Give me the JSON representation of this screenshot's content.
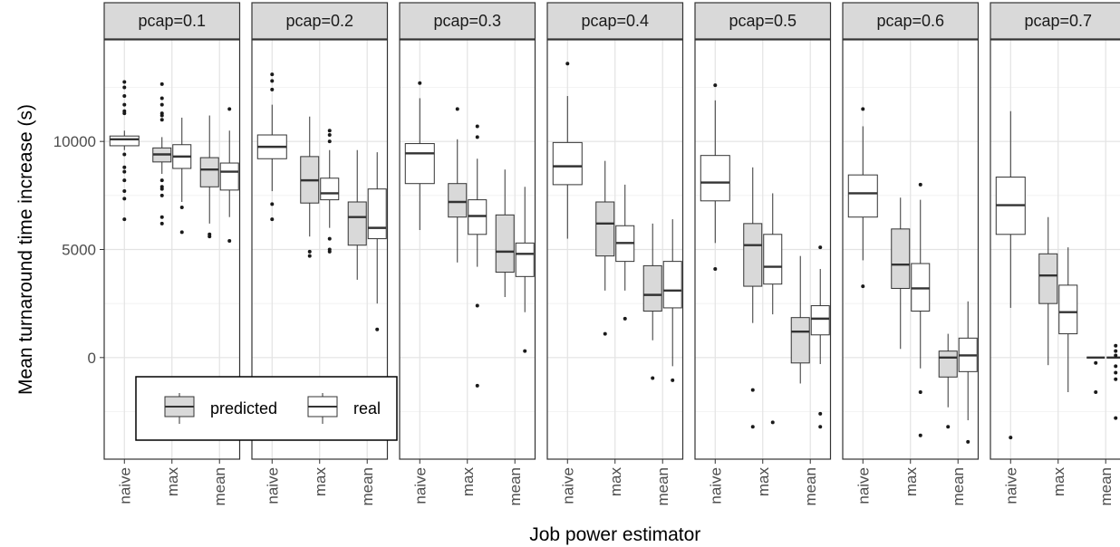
{
  "chart_data": {
    "type": "boxplot",
    "xlabel": "Job power estimator",
    "ylabel": "Mean turnaround time increase (s)",
    "ylim": [
      -4700,
      14700
    ],
    "yticks": [
      0,
      5000,
      10000
    ],
    "categories": [
      "naive",
      "max",
      "mean"
    ],
    "legend": {
      "position": "bottom-left",
      "entries": [
        {
          "label": "predicted",
          "fill": "#d9d9d9"
        },
        {
          "label": "real",
          "fill": "#ffffff"
        }
      ]
    },
    "facets": [
      {
        "label": "pcap=0.1",
        "boxes": [
          {
            "category": "naive",
            "series": "combined",
            "q1": 9800,
            "median": 10100,
            "q3": 10250,
            "low": 9600,
            "high": 10500,
            "outliers": [
              12750,
              12500,
              12100,
              11700,
              11400,
              11300,
              9400,
              8800,
              8600,
              8200,
              7700,
              7350,
              6400
            ]
          },
          {
            "category": "max",
            "series": "predicted",
            "q1": 9050,
            "median": 9400,
            "q3": 9700,
            "low": 8500,
            "high": 10200,
            "outliers": [
              12650,
              12000,
              11700,
              11300,
              11200,
              11000,
              8200,
              7900,
              7800,
              7500,
              6500,
              6200
            ]
          },
          {
            "category": "max",
            "series": "real",
            "q1": 8750,
            "median": 9300,
            "q3": 9850,
            "low": 7200,
            "high": 11100,
            "outliers": [
              6950,
              5800
            ]
          },
          {
            "category": "mean",
            "series": "predicted",
            "q1": 7900,
            "median": 8700,
            "q3": 9250,
            "low": 6200,
            "high": 11200,
            "outliers": [
              5700,
              5600
            ]
          },
          {
            "category": "mean",
            "series": "real",
            "q1": 7750,
            "median": 8600,
            "q3": 9000,
            "low": 6500,
            "high": 10500,
            "outliers": [
              11500,
              5400
            ]
          }
        ]
      },
      {
        "label": "pcap=0.2",
        "boxes": [
          {
            "category": "naive",
            "series": "combined",
            "q1": 9200,
            "median": 9750,
            "q3": 10300,
            "low": 7700,
            "high": 11700,
            "outliers": [
              13100,
              12800,
              12400,
              7100,
              6400
            ]
          },
          {
            "category": "max",
            "series": "predicted",
            "q1": 7150,
            "median": 8200,
            "q3": 9300,
            "low": 5600,
            "high": 11150,
            "outliers": [
              4900,
              4700
            ]
          },
          {
            "category": "max",
            "series": "real",
            "q1": 7300,
            "median": 7600,
            "q3": 8300,
            "low": 6000,
            "high": 9600,
            "outliers": [
              10500,
              10300,
              10000,
              5500,
              5000,
              4900
            ]
          },
          {
            "category": "mean",
            "series": "predicted",
            "q1": 5200,
            "median": 6500,
            "q3": 7200,
            "low": 3600,
            "high": 9600,
            "outliers": []
          },
          {
            "category": "mean",
            "series": "real",
            "q1": 5500,
            "median": 6000,
            "q3": 7800,
            "low": 2500,
            "high": 9500,
            "outliers": [
              1300
            ]
          }
        ]
      },
      {
        "label": "pcap=0.3",
        "boxes": [
          {
            "category": "naive",
            "series": "combined",
            "q1": 8050,
            "median": 9450,
            "q3": 9900,
            "low": 5900,
            "high": 12000,
            "outliers": [
              12700
            ]
          },
          {
            "category": "max",
            "series": "predicted",
            "q1": 6500,
            "median": 7200,
            "q3": 8050,
            "low": 4400,
            "high": 10100,
            "outliers": [
              11500
            ]
          },
          {
            "category": "max",
            "series": "real",
            "q1": 5700,
            "median": 6550,
            "q3": 7300,
            "low": 4200,
            "high": 9200,
            "outliers": [
              10700,
              10200,
              2400,
              -1300
            ]
          },
          {
            "category": "mean",
            "series": "predicted",
            "q1": 3950,
            "median": 4900,
            "q3": 6600,
            "low": 2800,
            "high": 8700,
            "outliers": []
          },
          {
            "category": "mean",
            "series": "real",
            "q1": 3750,
            "median": 4800,
            "q3": 5300,
            "low": 2100,
            "high": 7900,
            "outliers": [
              300
            ]
          }
        ]
      },
      {
        "label": "pcap=0.4",
        "boxes": [
          {
            "category": "naive",
            "series": "combined",
            "q1": 8000,
            "median": 8850,
            "q3": 9950,
            "low": 5500,
            "high": 12100,
            "outliers": [
              13600
            ]
          },
          {
            "category": "max",
            "series": "predicted",
            "q1": 4700,
            "median": 6200,
            "q3": 7200,
            "low": 3100,
            "high": 9100,
            "outliers": [
              1100
            ]
          },
          {
            "category": "max",
            "series": "real",
            "q1": 4450,
            "median": 5300,
            "q3": 6100,
            "low": 3100,
            "high": 8000,
            "outliers": [
              1800
            ]
          },
          {
            "category": "mean",
            "series": "predicted",
            "q1": 2150,
            "median": 2900,
            "q3": 4250,
            "low": 800,
            "high": 6200,
            "outliers": [
              -950
            ]
          },
          {
            "category": "mean",
            "series": "real",
            "q1": 2300,
            "median": 3100,
            "q3": 4450,
            "low": -400,
            "high": 6400,
            "outliers": [
              -1050
            ]
          }
        ]
      },
      {
        "label": "pcap=0.5",
        "boxes": [
          {
            "category": "naive",
            "series": "combined",
            "q1": 7250,
            "median": 8100,
            "q3": 9350,
            "low": 5300,
            "high": 11900,
            "outliers": [
              12600,
              4100
            ]
          },
          {
            "category": "max",
            "series": "predicted",
            "q1": 3300,
            "median": 5200,
            "q3": 6200,
            "low": 1600,
            "high": 8800,
            "outliers": [
              -1500,
              -3200
            ]
          },
          {
            "category": "max",
            "series": "real",
            "q1": 3400,
            "median": 4200,
            "q3": 5700,
            "low": 2000,
            "high": 7600,
            "outliers": [
              -3000
            ]
          },
          {
            "category": "mean",
            "series": "predicted",
            "q1": -250,
            "median": 1200,
            "q3": 1850,
            "low": -1200,
            "high": 4700,
            "outliers": []
          },
          {
            "category": "mean",
            "series": "real",
            "q1": 1050,
            "median": 1800,
            "q3": 2400,
            "low": -300,
            "high": 4100,
            "outliers": [
              5100,
              -2600,
              -3200
            ]
          }
        ]
      },
      {
        "label": "pcap=0.6",
        "boxes": [
          {
            "category": "naive",
            "series": "combined",
            "q1": 6500,
            "median": 7600,
            "q3": 8450,
            "low": 4500,
            "high": 10700,
            "outliers": [
              11500,
              3300
            ]
          },
          {
            "category": "max",
            "series": "predicted",
            "q1": 3200,
            "median": 4300,
            "q3": 5950,
            "low": 400,
            "high": 7400,
            "outliers": []
          },
          {
            "category": "max",
            "series": "real",
            "q1": 2150,
            "median": 3200,
            "q3": 4350,
            "low": -500,
            "high": 7300,
            "outliers": [
              8000,
              -1600,
              -3600
            ]
          },
          {
            "category": "mean",
            "series": "predicted",
            "q1": -900,
            "median": 0,
            "q3": 300,
            "low": -2300,
            "high": 1100,
            "outliers": [
              -3200
            ]
          },
          {
            "category": "mean",
            "series": "real",
            "q1": -650,
            "median": 100,
            "q3": 900,
            "low": -2900,
            "high": 2600,
            "outliers": [
              -3900
            ]
          }
        ]
      },
      {
        "label": "pcap=0.7",
        "boxes": [
          {
            "category": "naive",
            "series": "combined",
            "q1": 5700,
            "median": 7050,
            "q3": 8350,
            "low": 2300,
            "high": 11400,
            "outliers": [
              -3700
            ]
          },
          {
            "category": "max",
            "series": "predicted",
            "q1": 2500,
            "median": 3800,
            "q3": 4800,
            "low": -350,
            "high": 6500,
            "outliers": []
          },
          {
            "category": "max",
            "series": "real",
            "q1": 1100,
            "median": 2100,
            "q3": 3350,
            "low": -1600,
            "high": 5100,
            "outliers": []
          },
          {
            "category": "mean",
            "series": "predicted",
            "q1": 0,
            "median": 0,
            "q3": 0,
            "low": 0,
            "high": 0,
            "outliers": [
              -250,
              -1600
            ]
          },
          {
            "category": "mean",
            "series": "real",
            "q1": 0,
            "median": 0,
            "q3": 0,
            "low": 0,
            "high": 0,
            "outliers": [
              550,
              300,
              100,
              -400,
              -700,
              -1000,
              -2800
            ]
          }
        ]
      }
    ]
  }
}
